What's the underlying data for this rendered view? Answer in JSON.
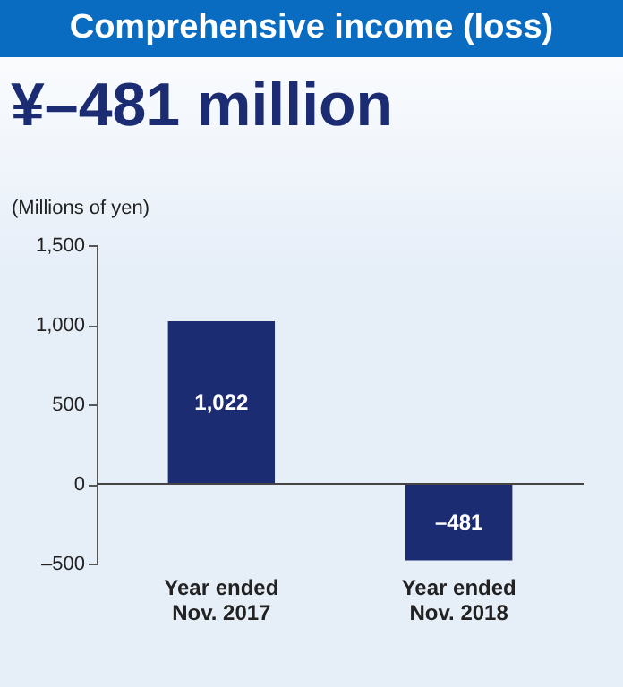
{
  "chart_data": {
    "type": "bar",
    "title": "Comprehensive income (loss)",
    "subtitle": "¥–481 million",
    "ylabel": "(Millions of yen)",
    "categories": [
      "Year ended\nNov. 2017",
      "Year ended\nNov. 2018"
    ],
    "values": [
      1022,
      -481
    ],
    "color": "#1c2c72",
    "value_labels": [
      "1,022",
      "–481"
    ],
    "ylim": [
      -500,
      1500
    ],
    "yticks": [
      {
        "value": -500,
        "label": "–500"
      },
      0,
      500,
      {
        "value": 1000,
        "label": "1,000"
      },
      {
        "value": 1500,
        "label": "1,500"
      }
    ],
    "ref_lines": [
      {
        "axis": "y",
        "value": 0
      }
    ]
  }
}
